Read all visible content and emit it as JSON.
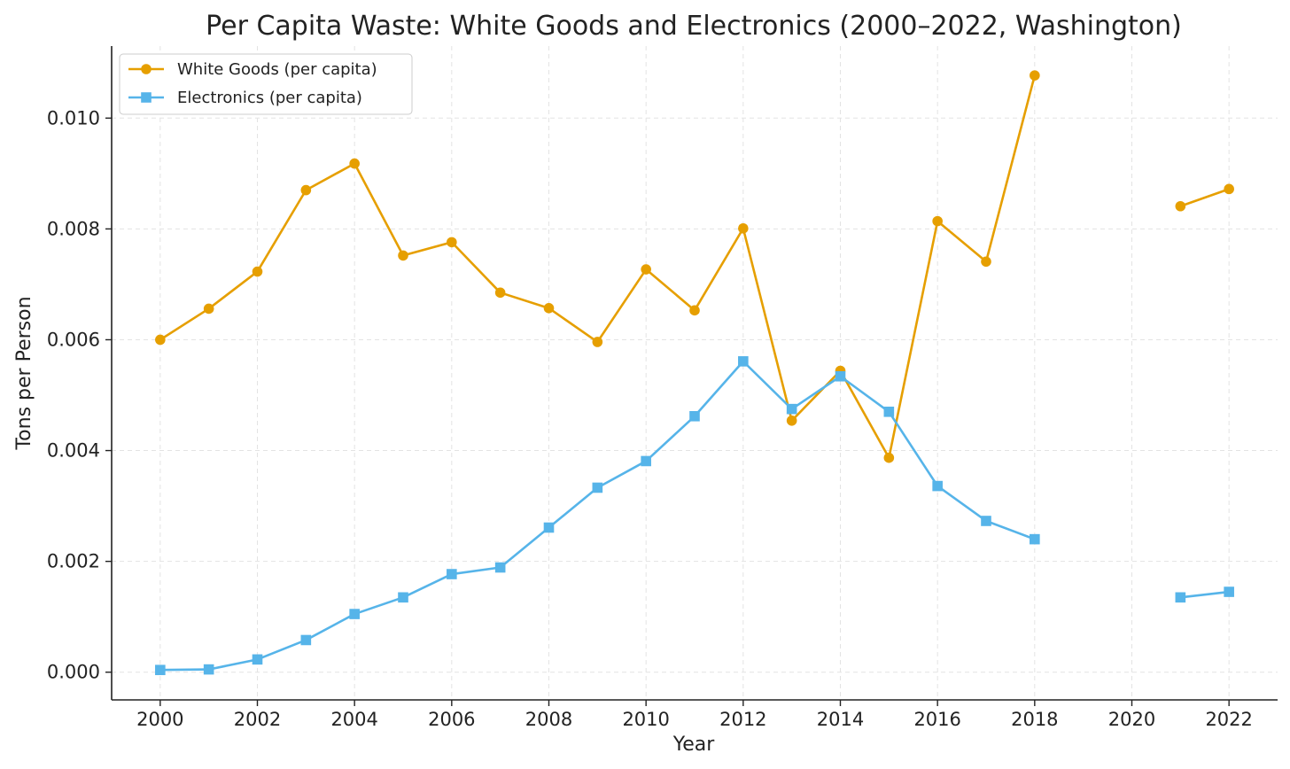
{
  "chart_data": {
    "type": "line",
    "title": "Per Capita Waste: White Goods and Electronics (2000–2022, Washington)",
    "xlabel": "Year",
    "ylabel": "Tons per Person",
    "xlim": [
      1999,
      2023
    ],
    "ylim": [
      -0.0005,
      0.0113
    ],
    "x_ticks": [
      2000,
      2002,
      2004,
      2006,
      2008,
      2010,
      2012,
      2014,
      2016,
      2018,
      2020,
      2022
    ],
    "x_tick_labels": [
      "2000",
      "2002",
      "2004",
      "2006",
      "2008",
      "2010",
      "2012",
      "2014",
      "2016",
      "2018",
      "2020",
      "2022"
    ],
    "y_ticks": [
      0,
      0.002,
      0.004,
      0.006,
      0.008,
      0.01
    ],
    "y_tick_labels": [
      "0.000",
      "0.002",
      "0.004",
      "0.006",
      "0.008",
      "0.010"
    ],
    "grid": true,
    "legend_position": "top-left",
    "x": [
      2000,
      2001,
      2002,
      2003,
      2004,
      2005,
      2006,
      2007,
      2008,
      2009,
      2010,
      2011,
      2012,
      2013,
      2014,
      2015,
      2016,
      2017,
      2018,
      2019,
      2020,
      2021,
      2022
    ],
    "series": [
      {
        "name": "White Goods (per capita)",
        "color": "#E69F00",
        "marker": "circle",
        "values": [
          0.006,
          0.00656,
          0.00723,
          0.0087,
          0.00918,
          0.00752,
          0.00776,
          0.00685,
          0.00657,
          0.00596,
          0.00727,
          0.00653,
          0.00801,
          0.00454,
          0.00544,
          0.00387,
          0.00814,
          0.00741,
          0.01077,
          null,
          null,
          0.00841,
          0.00872
        ]
      },
      {
        "name": "Electronics (per capita)",
        "color": "#56B4E9",
        "marker": "square",
        "values": [
          4e-05,
          5e-05,
          0.00023,
          0.00058,
          0.00105,
          0.00135,
          0.00177,
          0.00189,
          0.00261,
          0.00333,
          0.00381,
          0.00462,
          0.00561,
          0.00475,
          0.00534,
          0.0047,
          0.00336,
          0.00273,
          0.0024,
          null,
          null,
          0.00135,
          0.00145
        ]
      }
    ]
  }
}
